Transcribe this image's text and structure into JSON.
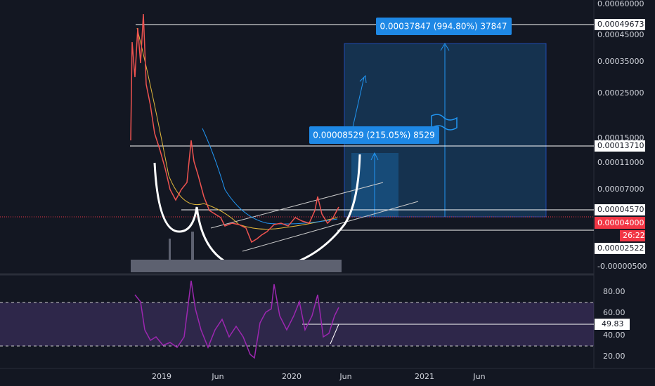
{
  "price_axis": {
    "labels": [
      "0.00060000",
      "0.00045000",
      "0.00035000",
      "0.00025000",
      "0.00015000",
      "0.00011000",
      "0.00007000",
      "-0.00000500"
    ],
    "markers": [
      "0.00049673",
      "0.00013710",
      "0.00004570",
      "0.00002522"
    ],
    "current_price": "0.00004000",
    "countdown": "26:22"
  },
  "rsi_axis": {
    "labels": [
      "80.00",
      "60.00",
      "40.00",
      "20.00"
    ],
    "current": "49.83"
  },
  "time_axis": [
    "2019",
    "Jun",
    "2020",
    "Jun",
    "2021",
    "Jun"
  ],
  "annotations": [
    "0.00037847 (994.80%) 37847",
    "0.00008529 (215.05%) 8529"
  ]
}
